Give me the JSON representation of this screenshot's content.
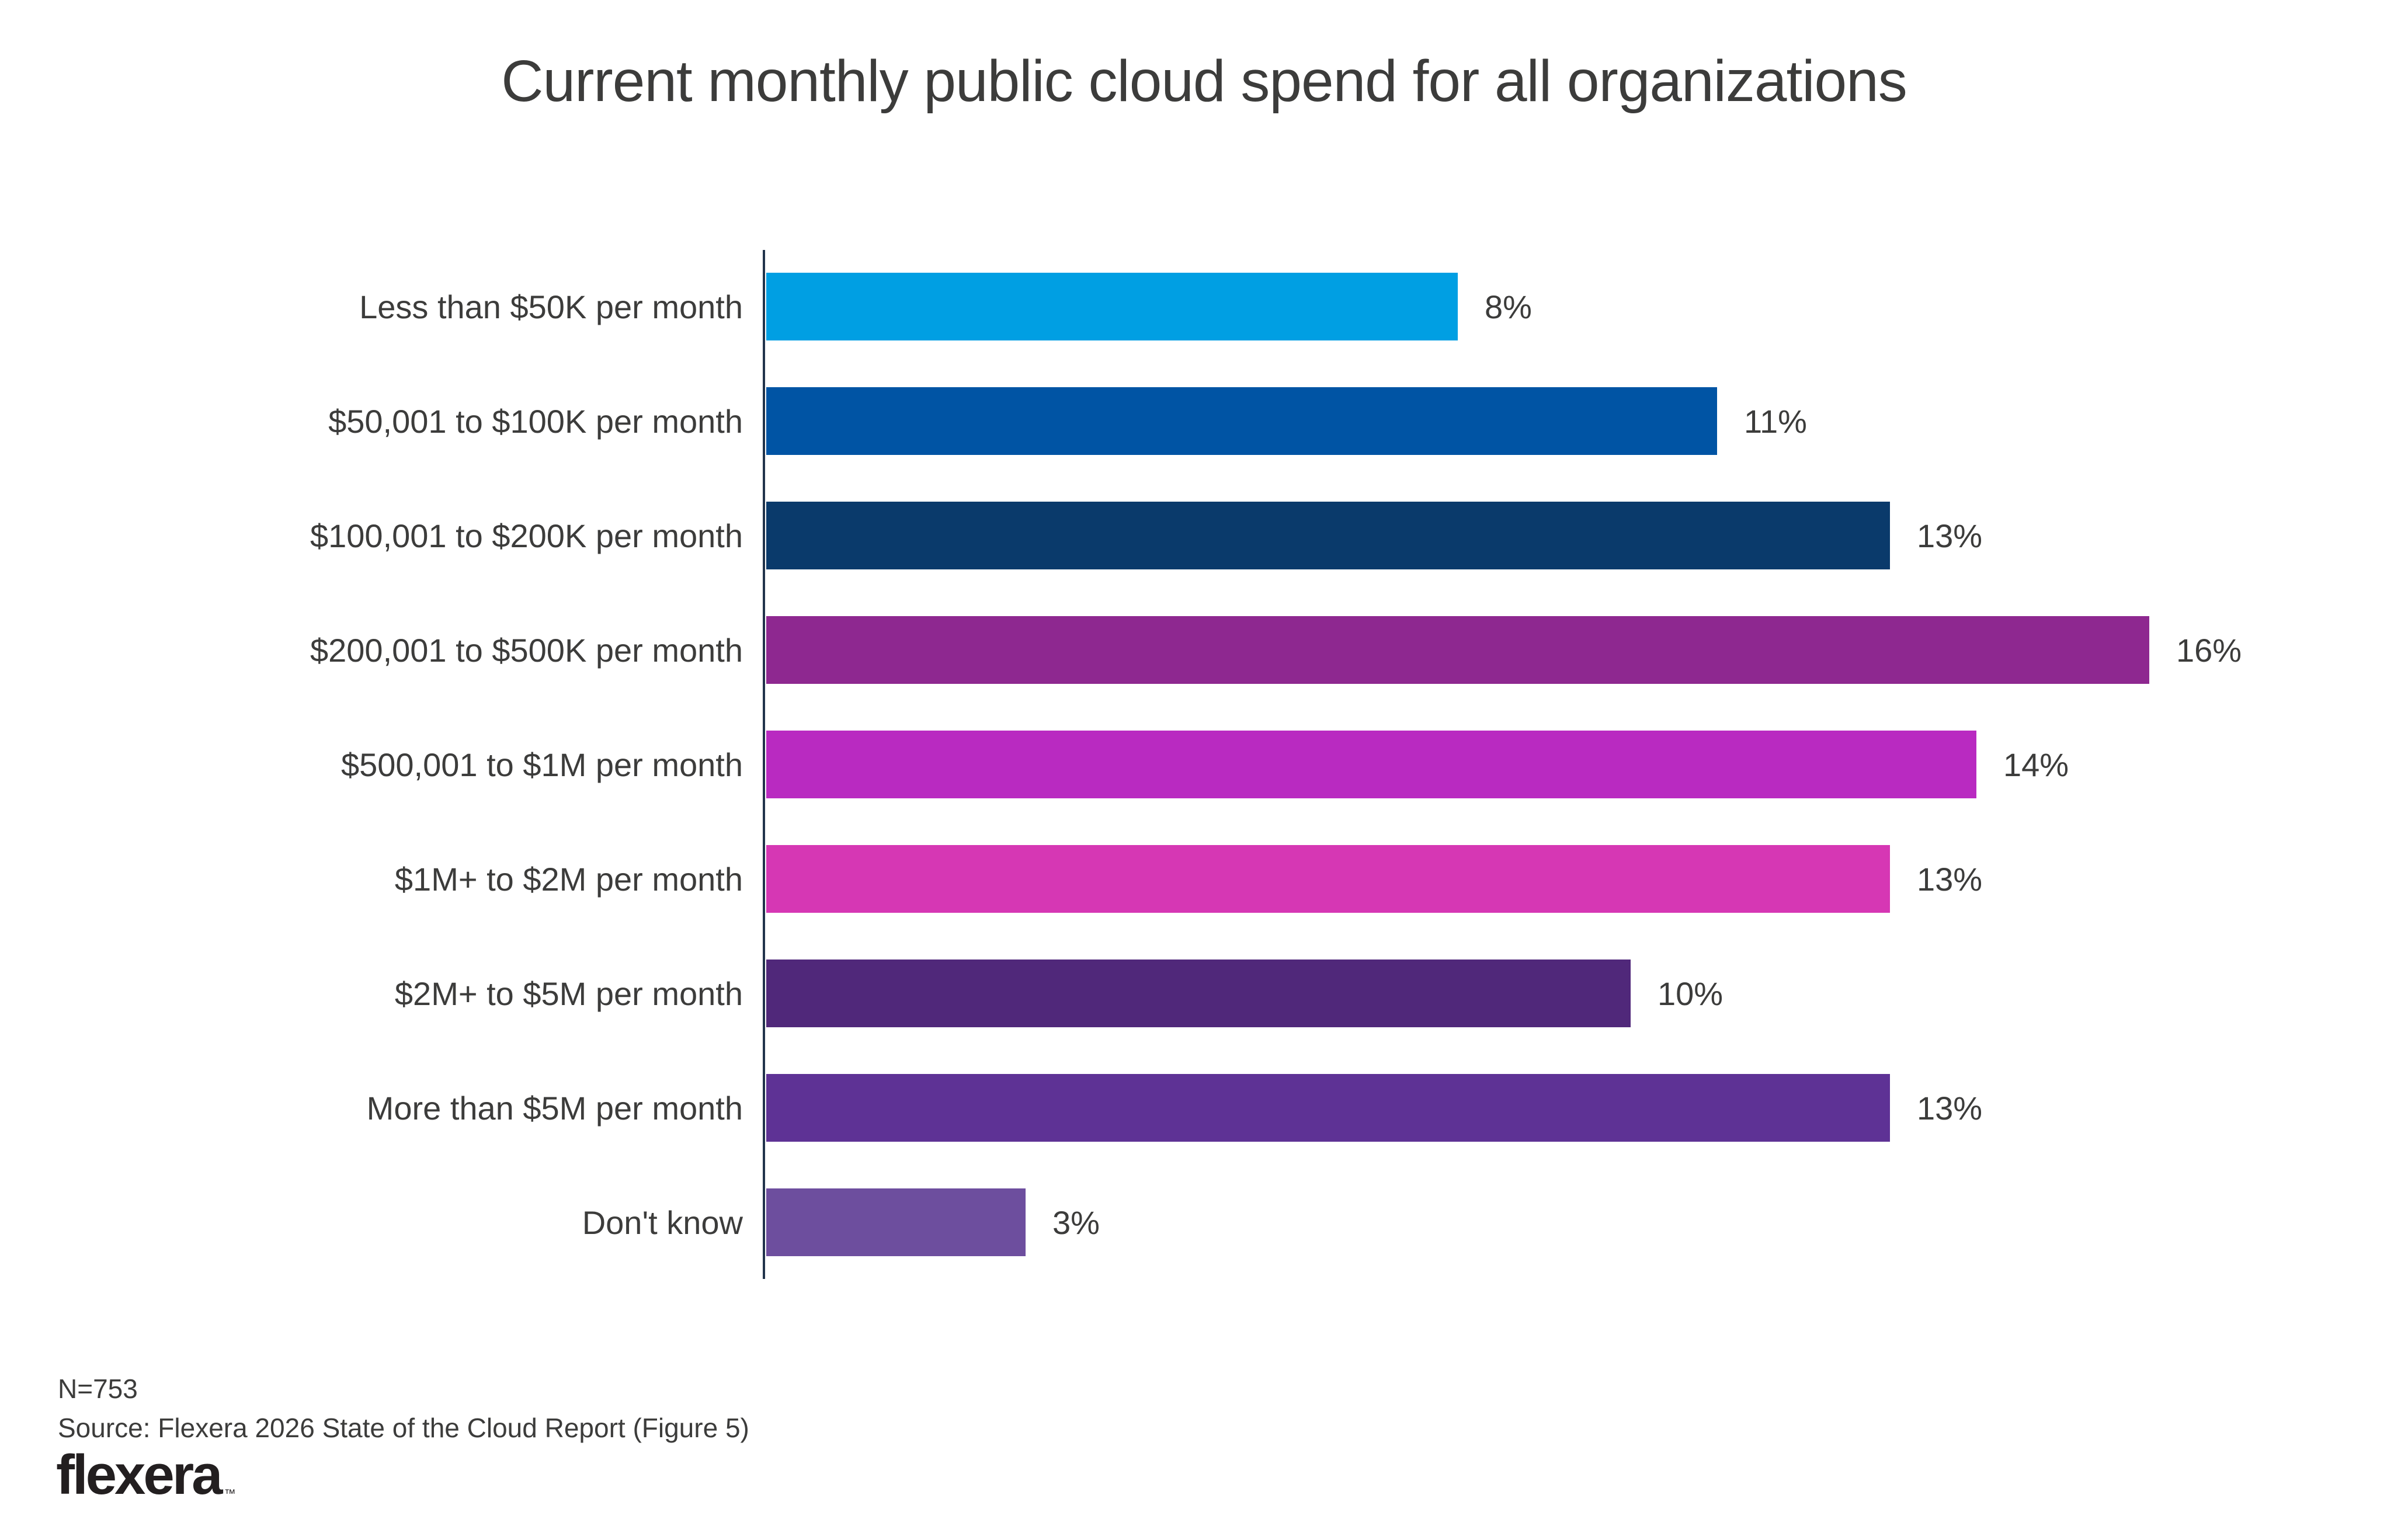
{
  "title": "Current monthly public cloud spend for all organizations",
  "chart_data": {
    "type": "bar",
    "orientation": "horizontal",
    "title": "Current monthly public cloud spend for all organizations",
    "xlabel": "",
    "ylabel": "",
    "xlim": [
      0,
      17
    ],
    "grid": false,
    "legend": "none",
    "data_labels_position": "outside-end",
    "categories": [
      "Less than $50K per month",
      "$50,001 to $100K per month",
      "$100,001 to $200K per month",
      "$200,001 to $500K per month",
      "$500,001 to $1M per month",
      "$1M+ to $2M per month",
      "$2M+ to $5M per month",
      "More than $5M per month",
      "Don't know"
    ],
    "values": [
      8,
      11,
      13,
      16,
      14,
      13,
      10,
      13,
      3
    ],
    "value_labels": [
      "8%",
      "11%",
      "13%",
      "16%",
      "14%",
      "13%",
      "10%",
      "13%",
      "3%"
    ],
    "bar_colors": [
      "#009FE3",
      "#0054A4",
      "#0A3A6B",
      "#8E2890",
      "#B92AC1",
      "#D637B4",
      "#50287A",
      "#5E3295",
      "#6D4E9E"
    ]
  },
  "footer": {
    "n_label": "N=753",
    "source": "Source: Flexera 2026 State of the Cloud Report (Figure 5)"
  },
  "logo": {
    "text": "flexera",
    "trademark": "™",
    "color": "#231F20"
  },
  "colors": {
    "text": "#3C3C3B",
    "axis_line": "#22344C",
    "background": "#FFFFFF"
  }
}
